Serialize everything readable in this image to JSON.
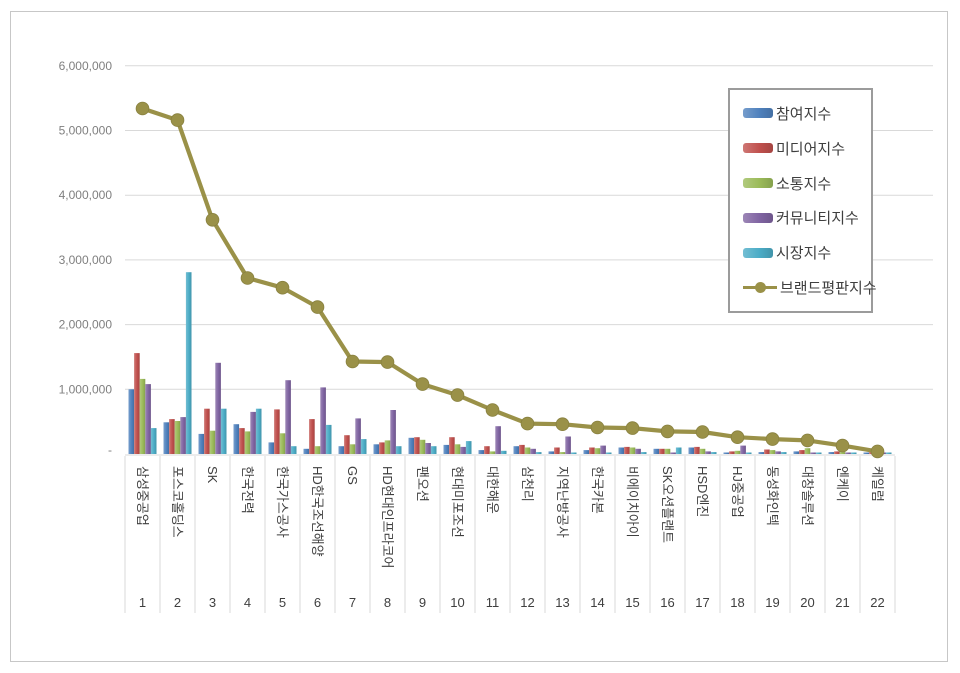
{
  "chart_data": {
    "type": "bar+line",
    "title": "",
    "grid": true,
    "legend_position": "inside-top-right",
    "categories": [
      "삼성중공업",
      "포스코홀딩스",
      "SK",
      "한국전력",
      "한국가스공사",
      "HD한국조선해양",
      "GS",
      "HD현대인프라코어",
      "팬오션",
      "현대미포조선",
      "대한해운",
      "삼천리",
      "지역난방공사",
      "한국카본",
      "비에이치아이",
      "SK오션플랜트",
      "HSD엔진",
      "HJ중공업",
      "동성화인텍",
      "대창솔루션",
      "엔케이",
      "케일럼"
    ],
    "ranks": [
      "1",
      "2",
      "3",
      "4",
      "5",
      "6",
      "7",
      "8",
      "9",
      "10",
      "11",
      "12",
      "13",
      "14",
      "15",
      "16",
      "17",
      "18",
      "19",
      "20",
      "21",
      "22"
    ],
    "y_axis": {
      "min": 0,
      "max": 6000000,
      "tick_interval": 1000000,
      "tick_labels": [
        "6,000,000",
        "5,000,000",
        "4,000,000",
        "3,000,000",
        "2,000,000",
        "1,000,000",
        "-"
      ]
    },
    "series": [
      {
        "name": "참여지수",
        "type": "bar",
        "color": "#4f81bd",
        "values": [
          1000000,
          490000,
          310000,
          460000,
          180000,
          80000,
          120000,
          150000,
          250000,
          140000,
          60000,
          120000,
          40000,
          60000,
          100000,
          80000,
          100000,
          20000,
          30000,
          40000,
          30000,
          15000
        ]
      },
      {
        "name": "미디어지수",
        "type": "bar",
        "color": "#c0504d",
        "values": [
          1560000,
          540000,
          700000,
          400000,
          690000,
          540000,
          290000,
          180000,
          260000,
          260000,
          120000,
          140000,
          100000,
          100000,
          110000,
          80000,
          110000,
          40000,
          70000,
          60000,
          40000,
          30000
        ]
      },
      {
        "name": "소통지수",
        "type": "bar",
        "color": "#9bbb59",
        "values": [
          1160000,
          510000,
          360000,
          350000,
          320000,
          120000,
          150000,
          210000,
          220000,
          150000,
          40000,
          100000,
          30000,
          90000,
          100000,
          80000,
          80000,
          50000,
          60000,
          90000,
          30000,
          15000
        ]
      },
      {
        "name": "커뮤니티지수",
        "type": "bar",
        "color": "#8064a2",
        "values": [
          1080000,
          570000,
          1410000,
          650000,
          1140000,
          1030000,
          550000,
          680000,
          170000,
          110000,
          430000,
          80000,
          270000,
          130000,
          80000,
          20000,
          40000,
          130000,
          40000,
          20000,
          20000,
          10000
        ]
      },
      {
        "name": "시장지수",
        "type": "bar",
        "color": "#4bacc6",
        "values": [
          400000,
          2810000,
          700000,
          700000,
          120000,
          450000,
          230000,
          120000,
          120000,
          200000,
          50000,
          30000,
          20000,
          20000,
          30000,
          100000,
          30000,
          10000,
          30000,
          20000,
          10000,
          10000
        ]
      },
      {
        "name": "브랜드평판지수",
        "type": "line",
        "color": "#9a9148",
        "values": [
          5340000,
          5160000,
          3620000,
          2720000,
          2570000,
          2270000,
          1430000,
          1420000,
          1080000,
          910000,
          680000,
          470000,
          460000,
          410000,
          400000,
          350000,
          340000,
          260000,
          230000,
          210000,
          130000,
          40000
        ]
      }
    ],
    "colors": {
      "gridline": "#d9d9d9",
      "axis_line": "#d9d9d9",
      "tick_text": "#7f7f7f",
      "category_text": "#3f3f3f",
      "frame_border": "#c7c7c7",
      "legend_border": "#9b9b9b"
    }
  }
}
